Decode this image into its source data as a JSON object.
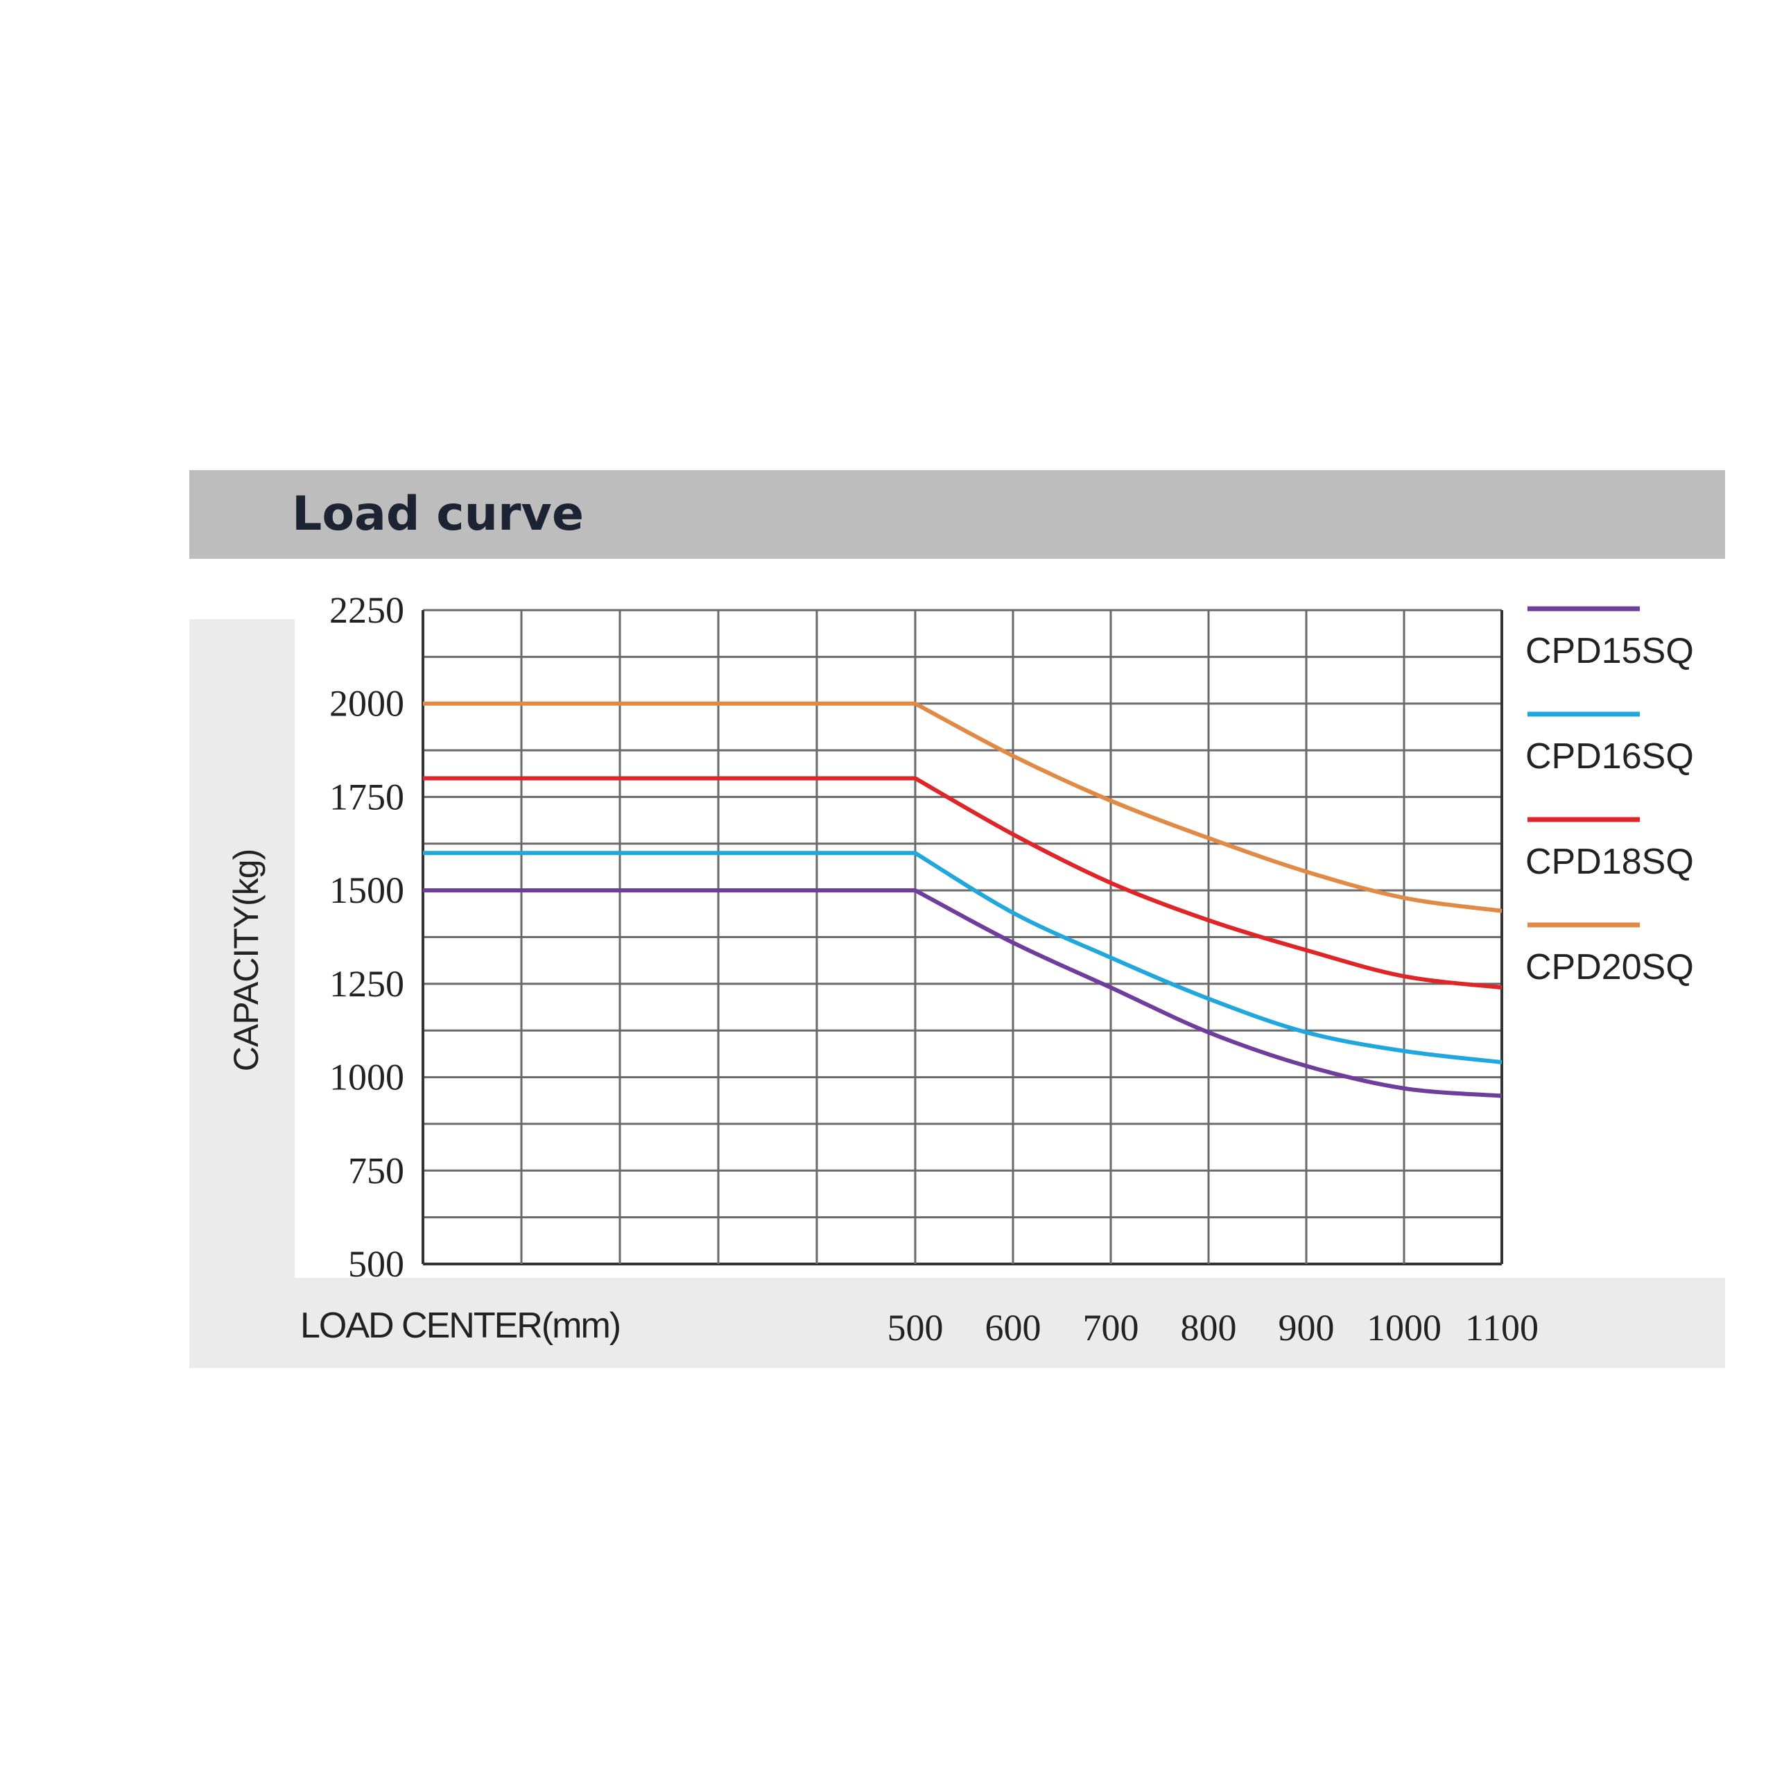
{
  "header": {
    "title": "Load curve"
  },
  "chart_data": {
    "type": "line",
    "ylabel": "CAPACITY(kg)",
    "xlabel": "LOAD CENTER(mm)",
    "ylim": [
      500,
      2250
    ],
    "yticks": [
      "2250",
      "2000",
      "1750",
      "1500",
      "1250",
      "1000",
      "750",
      "500"
    ],
    "xticks": [
      "500",
      "600",
      "700",
      "800",
      "900",
      "1000",
      "1100"
    ],
    "grid": true,
    "legend_position": "right",
    "x": [
      500,
      600,
      700,
      800,
      900,
      1000,
      1100
    ],
    "series": [
      {
        "name": "CPD15SQ",
        "color": "#6f3d9c",
        "flat": 1500,
        "values": [
          1500,
          1360,
          1240,
          1120,
          1030,
          970,
          950
        ]
      },
      {
        "name": "CPD16SQ",
        "color": "#1fa7de",
        "flat": 1600,
        "values": [
          1600,
          1440,
          1320,
          1210,
          1120,
          1070,
          1040
        ]
      },
      {
        "name": "CPD18SQ",
        "color": "#e02528",
        "flat": 1800,
        "values": [
          1800,
          1650,
          1520,
          1420,
          1340,
          1270,
          1240
        ]
      },
      {
        "name": "CPD20SQ",
        "color": "#e08a45",
        "flat": 2000,
        "values": [
          2000,
          1860,
          1740,
          1640,
          1550,
          1480,
          1445
        ]
      }
    ]
  }
}
